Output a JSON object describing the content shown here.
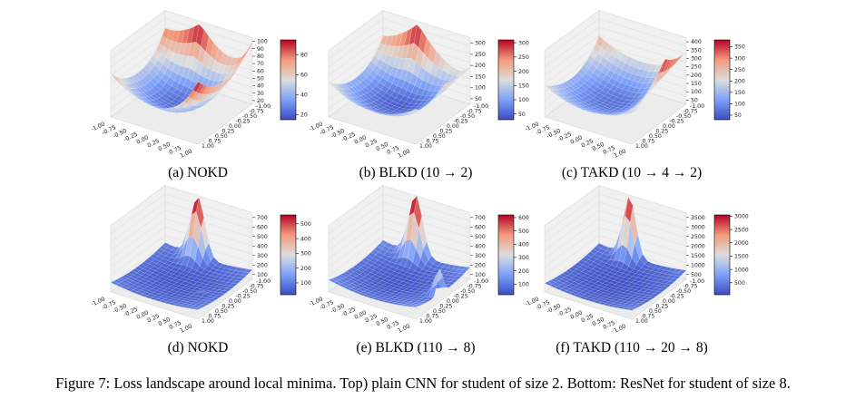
{
  "figure_caption": "Figure 7: Loss landscape around local minima. Top) plain CNN for student of size 2. Bottom: ResNet for student of size 8.",
  "axis_ticks": {
    "x": [
      "-1.00",
      "-0.75",
      "-0.50",
      "-0.25",
      "0.00",
      "0.25",
      "0.50",
      "0.75",
      "1.00"
    ],
    "y": [
      "-1.00",
      "-0.75",
      "-0.50",
      "-0.25",
      "0.00",
      "0.25",
      "0.50",
      "0.75",
      "1.00"
    ]
  },
  "chart_data": [
    {
      "type": "surface",
      "caption": "(a) NOKD",
      "zticks": [
        "20",
        "30",
        "40",
        "50",
        "60",
        "70",
        "80",
        "90",
        "100"
      ],
      "zlim": [
        10,
        100
      ],
      "colorbar_ticks": [
        "20",
        "40",
        "60",
        "80"
      ],
      "colorbar_range": [
        15,
        95
      ],
      "peaks": [
        "back-corner",
        "right-corner"
      ]
    },
    {
      "type": "surface",
      "caption": "(b) BLKD (10 → 2)",
      "zticks": [
        "50",
        "100",
        "150",
        "200",
        "250",
        "300"
      ],
      "zlim": [
        0,
        320
      ],
      "colorbar_ticks": [
        "50",
        "100",
        "150",
        "200",
        "250",
        "300"
      ],
      "colorbar_range": [
        30,
        310
      ],
      "peaks": [
        "back-corner",
        "right-corner"
      ]
    },
    {
      "type": "surface",
      "caption": "(c) TAKD (10 → 4 → 2)",
      "zticks": [
        "50",
        "100",
        "150",
        "200",
        "250",
        "300",
        "350",
        "400"
      ],
      "zlim": [
        0,
        420
      ],
      "colorbar_ticks": [
        "50",
        "100",
        "150",
        "200",
        "250",
        "300",
        "350"
      ],
      "colorbar_range": [
        30,
        380
      ],
      "peaks": [
        "right-corner"
      ]
    },
    {
      "type": "surface",
      "caption": "(d) NOKD",
      "zticks": [
        "100",
        "200",
        "300",
        "400",
        "500",
        "600",
        "700"
      ],
      "zlim": [
        0,
        720
      ],
      "colorbar_ticks": [
        "100",
        "200",
        "300",
        "400",
        "500"
      ],
      "colorbar_range": [
        20,
        560
      ],
      "peaks": [
        "back-corner"
      ]
    },
    {
      "type": "surface",
      "caption": "(e) BLKD (110 → 8)",
      "zticks": [
        "100",
        "200",
        "300",
        "400",
        "500",
        "600",
        "700"
      ],
      "zlim": [
        0,
        740
      ],
      "colorbar_ticks": [
        "100",
        "200",
        "300",
        "400",
        "500",
        "600"
      ],
      "colorbar_range": [
        20,
        620
      ],
      "peaks": [
        "back-corner",
        "right-corner"
      ]
    },
    {
      "type": "surface",
      "caption": "(f) TAKD (110 → 20 → 8)",
      "zticks": [
        "500",
        "1000",
        "1500",
        "2000",
        "2500",
        "3000",
        "3500"
      ],
      "zlim": [
        0,
        3600
      ],
      "colorbar_ticks": [
        "500",
        "1000",
        "1500",
        "2000",
        "2500",
        "3000"
      ],
      "colorbar_range": [
        50,
        3050
      ],
      "peaks": [
        "back-corner"
      ]
    }
  ]
}
